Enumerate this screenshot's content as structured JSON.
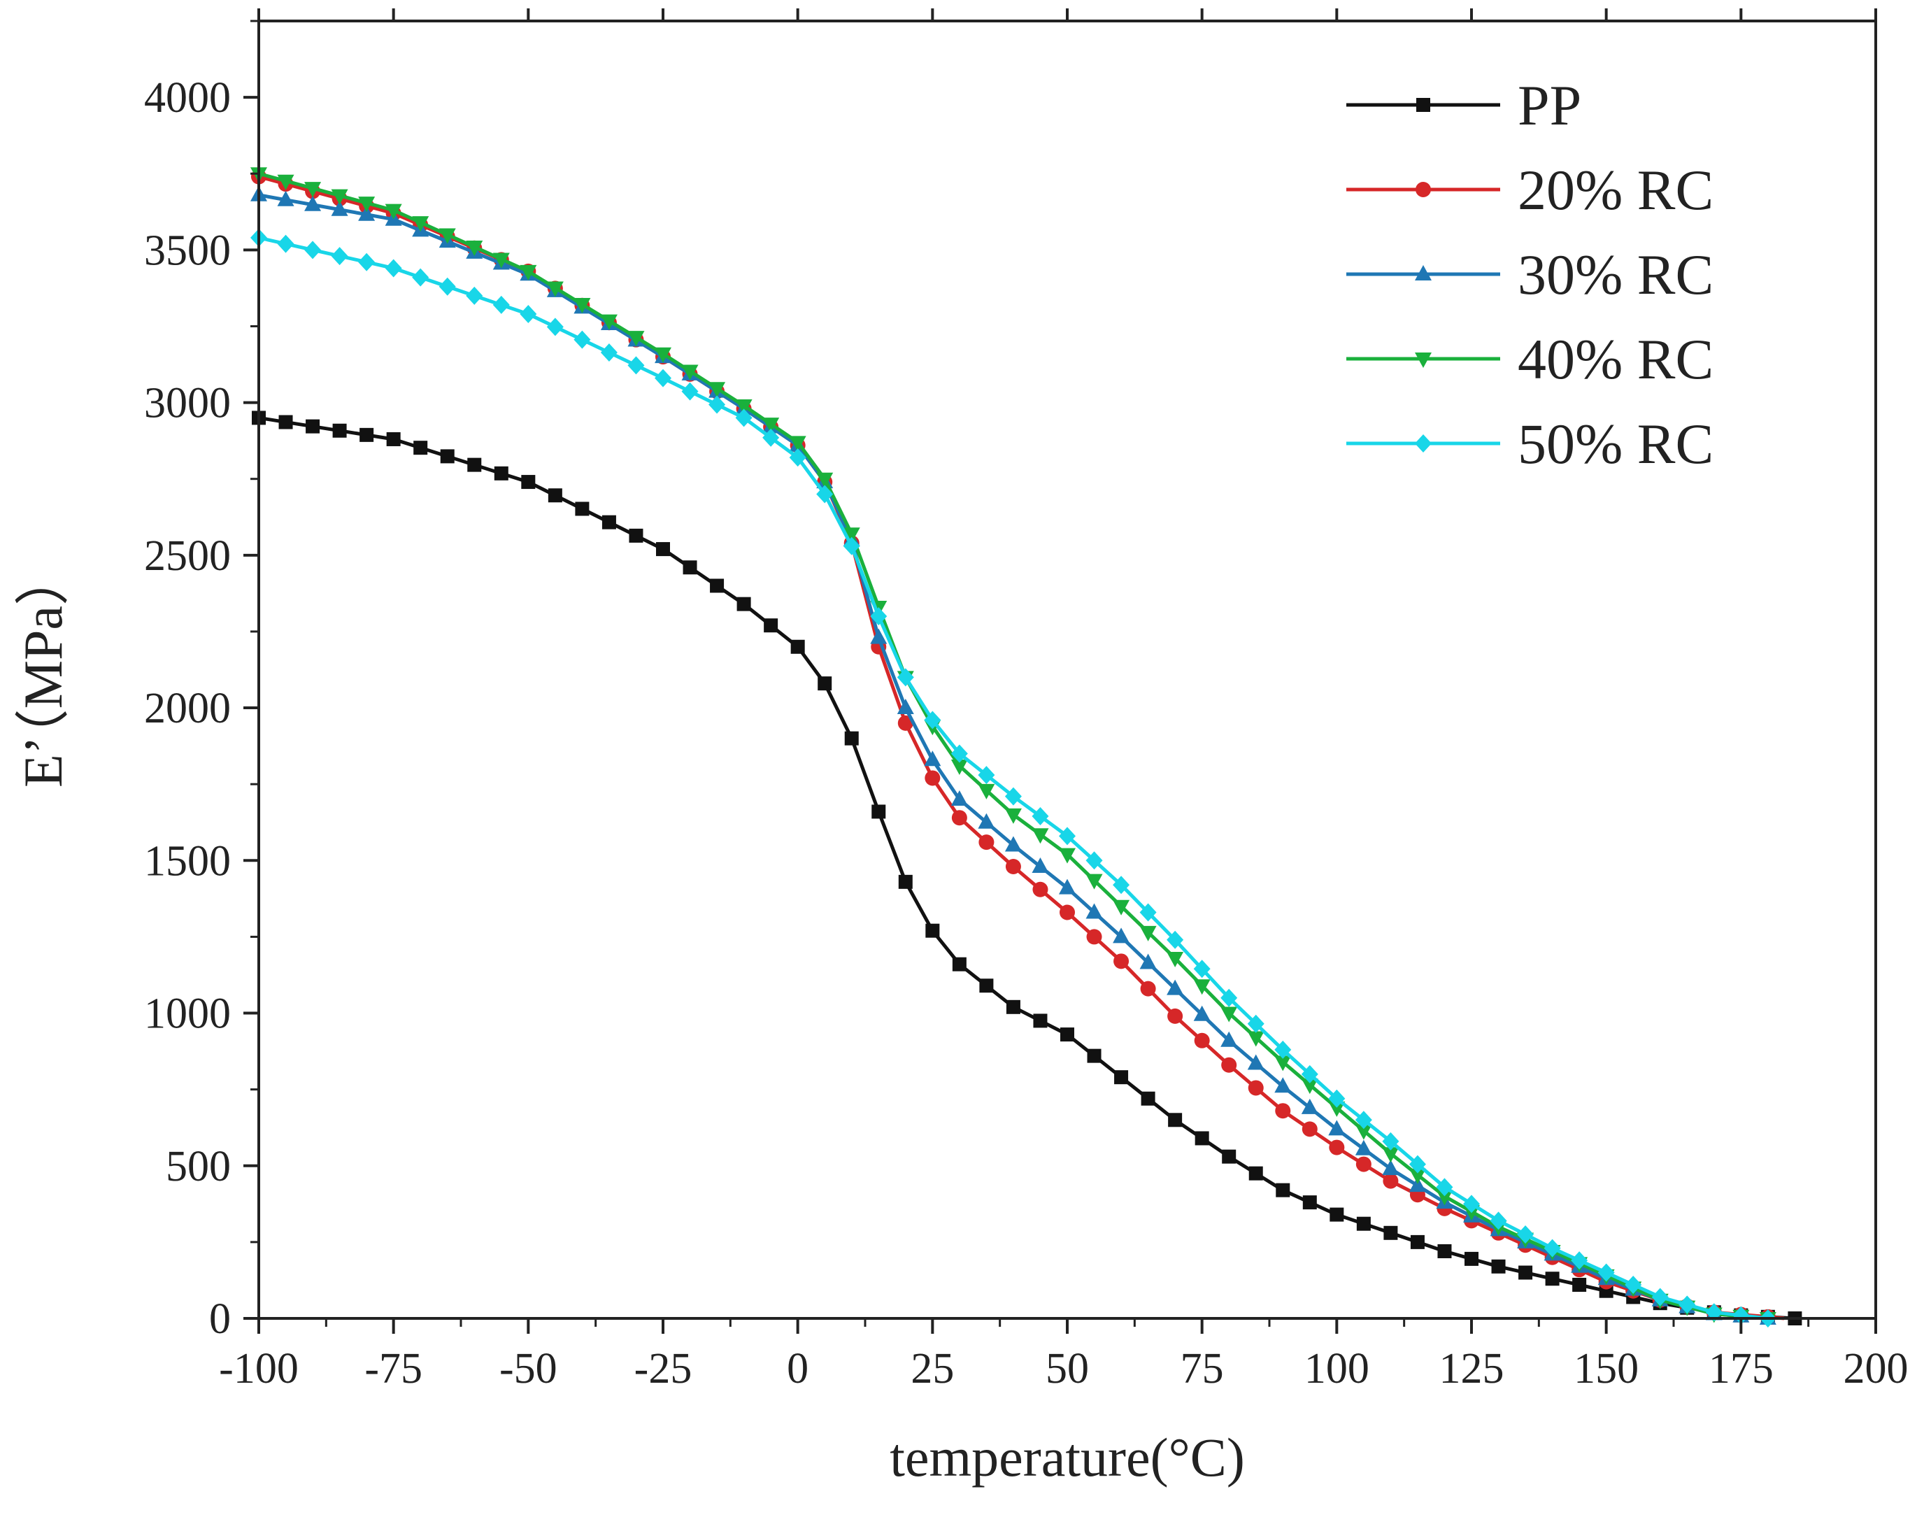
{
  "chart_data": {
    "type": "line",
    "title": "",
    "xlabel": "temperature(°C)",
    "ylabel": "E’（MPa）",
    "xlim": [
      -100,
      200
    ],
    "ylim": [
      0,
      4250
    ],
    "grid": false,
    "legend_position": "top-right",
    "x_ticks": [
      -100,
      -75,
      -50,
      -25,
      0,
      25,
      50,
      75,
      100,
      125,
      150,
      175,
      200
    ],
    "x_tick_labels": [
      "-100",
      "-75",
      "-50",
      "-25",
      "0",
      "25",
      "50",
      "75",
      "100",
      "125",
      "150",
      "175",
      "200"
    ],
    "y_ticks": [
      0,
      500,
      1000,
      1500,
      2000,
      2500,
      3000,
      3500,
      4000
    ],
    "y_tick_labels": [
      "0",
      "500",
      "1000",
      "1500",
      "2000",
      "2500",
      "3000",
      "3500",
      "4000"
    ],
    "series": [
      {
        "name": "PP",
        "color": "#111111",
        "marker": "square",
        "points": [
          [
            -100,
            2950
          ],
          [
            -75,
            2880
          ],
          [
            -50,
            2740
          ],
          [
            -25,
            2520
          ],
          [
            -10,
            2340
          ],
          [
            0,
            2200
          ],
          [
            5,
            2080
          ],
          [
            10,
            1900
          ],
          [
            15,
            1660
          ],
          [
            20,
            1430
          ],
          [
            25,
            1270
          ],
          [
            30,
            1160
          ],
          [
            40,
            1020
          ],
          [
            50,
            930
          ],
          [
            60,
            790
          ],
          [
            70,
            650
          ],
          [
            80,
            530
          ],
          [
            90,
            420
          ],
          [
            100,
            340
          ],
          [
            110,
            280
          ],
          [
            120,
            220
          ],
          [
            130,
            170
          ],
          [
            140,
            130
          ],
          [
            150,
            90
          ],
          [
            160,
            50
          ],
          [
            170,
            20
          ],
          [
            175,
            10
          ],
          [
            185,
            0
          ]
        ]
      },
      {
        "name": "20% RC",
        "color": "#d62728",
        "marker": "circle",
        "points": [
          [
            -100,
            3740
          ],
          [
            -75,
            3620
          ],
          [
            -50,
            3430
          ],
          [
            -25,
            3150
          ],
          [
            -10,
            2980
          ],
          [
            0,
            2860
          ],
          [
            5,
            2740
          ],
          [
            10,
            2540
          ],
          [
            15,
            2200
          ],
          [
            20,
            1950
          ],
          [
            25,
            1770
          ],
          [
            30,
            1640
          ],
          [
            40,
            1480
          ],
          [
            50,
            1330
          ],
          [
            60,
            1170
          ],
          [
            70,
            990
          ],
          [
            80,
            830
          ],
          [
            90,
            680
          ],
          [
            100,
            560
          ],
          [
            110,
            450
          ],
          [
            120,
            360
          ],
          [
            130,
            280
          ],
          [
            140,
            200
          ],
          [
            150,
            120
          ],
          [
            160,
            60
          ],
          [
            170,
            20
          ],
          [
            180,
            5
          ],
          [
            183,
            0
          ]
        ]
      },
      {
        "name": "30% RC",
        "color": "#1f77b4",
        "marker": "triangle-up",
        "points": [
          [
            -100,
            3680
          ],
          [
            -75,
            3600
          ],
          [
            -50,
            3420
          ],
          [
            -25,
            3150
          ],
          [
            -10,
            2980
          ],
          [
            0,
            2860
          ],
          [
            5,
            2740
          ],
          [
            10,
            2550
          ],
          [
            15,
            2230
          ],
          [
            20,
            2000
          ],
          [
            25,
            1830
          ],
          [
            30,
            1700
          ],
          [
            40,
            1550
          ],
          [
            50,
            1410
          ],
          [
            60,
            1250
          ],
          [
            70,
            1080
          ],
          [
            80,
            910
          ],
          [
            90,
            760
          ],
          [
            100,
            620
          ],
          [
            110,
            490
          ],
          [
            120,
            380
          ],
          [
            130,
            290
          ],
          [
            140,
            210
          ],
          [
            150,
            130
          ],
          [
            160,
            60
          ],
          [
            170,
            15
          ],
          [
            180,
            0
          ]
        ]
      },
      {
        "name": "40% RC",
        "color": "#1ab03c",
        "marker": "triangle-down",
        "points": [
          [
            -100,
            3750
          ],
          [
            -75,
            3630
          ],
          [
            -50,
            3430
          ],
          [
            -25,
            3160
          ],
          [
            -10,
            2990
          ],
          [
            0,
            2870
          ],
          [
            5,
            2750
          ],
          [
            10,
            2570
          ],
          [
            15,
            2330
          ],
          [
            20,
            2100
          ],
          [
            25,
            1940
          ],
          [
            30,
            1810
          ],
          [
            40,
            1650
          ],
          [
            50,
            1520
          ],
          [
            60,
            1350
          ],
          [
            70,
            1180
          ],
          [
            80,
            1000
          ],
          [
            90,
            840
          ],
          [
            100,
            690
          ],
          [
            110,
            540
          ],
          [
            120,
            400
          ],
          [
            130,
            300
          ],
          [
            140,
            220
          ],
          [
            150,
            140
          ],
          [
            160,
            60
          ],
          [
            170,
            15
          ],
          [
            180,
            0
          ]
        ]
      },
      {
        "name": "50% RC",
        "color": "#18d6e8",
        "marker": "diamond",
        "points": [
          [
            -100,
            3540
          ],
          [
            -75,
            3440
          ],
          [
            -50,
            3290
          ],
          [
            -25,
            3080
          ],
          [
            -10,
            2950
          ],
          [
            0,
            2820
          ],
          [
            5,
            2700
          ],
          [
            10,
            2530
          ],
          [
            15,
            2300
          ],
          [
            20,
            2100
          ],
          [
            25,
            1960
          ],
          [
            30,
            1850
          ],
          [
            40,
            1710
          ],
          [
            50,
            1580
          ],
          [
            60,
            1420
          ],
          [
            70,
            1240
          ],
          [
            80,
            1050
          ],
          [
            90,
            880
          ],
          [
            100,
            720
          ],
          [
            110,
            580
          ],
          [
            120,
            430
          ],
          [
            130,
            320
          ],
          [
            140,
            230
          ],
          [
            150,
            150
          ],
          [
            160,
            70
          ],
          [
            170,
            20
          ],
          [
            180,
            0
          ]
        ]
      }
    ]
  }
}
